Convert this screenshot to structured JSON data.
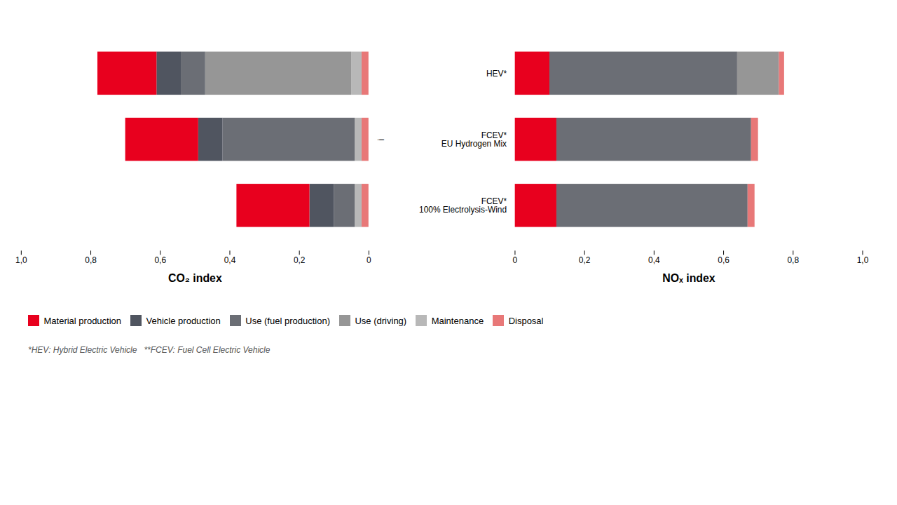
{
  "chart_data": [
    {
      "type": "bar",
      "orientation": "horizontal",
      "stacked": true,
      "tick_labels": "x",
      "xlabel": "CO₂ index",
      "categories": [
        "HEV*",
        "FCEV*\nEU Hydrogen Mix",
        "FCEV*\n100% Electrolysis-Wind"
      ],
      "series": [
        {
          "name": "Disposal",
          "color": "#e87878",
          "values": [
            0.02,
            0.02,
            0.02
          ]
        },
        {
          "name": "Maintenance",
          "color": "#b8b8b8",
          "values": [
            0.03,
            0.02,
            0.02
          ]
        },
        {
          "name": "Use (driving)",
          "color": "#969696",
          "values": [
            0.42,
            0.0,
            0.0
          ]
        },
        {
          "name": "Use (fuel production)",
          "color": "#6b6e75",
          "values": [
            0.07,
            0.38,
            0.06
          ]
        },
        {
          "name": "Vehicle production",
          "color": "#505560",
          "values": [
            0.07,
            0.07,
            0.07
          ]
        },
        {
          "name": "Material production",
          "color": "#e8001e",
          "values": [
            0.17,
            0.21,
            0.21
          ]
        }
      ],
      "xlim": [
        1.0,
        0
      ],
      "xticks": [
        {
          "value": 1.0,
          "label": "1,0"
        },
        {
          "value": 0.8,
          "label": "0,8"
        },
        {
          "value": 0.6,
          "label": "0,6"
        },
        {
          "value": 0.4,
          "label": "0,4"
        },
        {
          "value": 0.2,
          "label": "0,2"
        },
        0
      ],
      "annotations": [
        "*HEV: Hybrid Electric Vehicle   **FCEV: Fuel Cell Electric Vehicle"
      ]
    },
    {
      "type": "bar",
      "orientation": "horizontal",
      "stacked": true,
      "legend": "bottom",
      "xlabel": "NOₓ index",
      "categories": [
        "HEV*",
        "FCEV*\nEU Hydrogen Mix",
        "FCEV*\n100% Electrolysis-Wind"
      ],
      "series": [
        {
          "name": "Material production",
          "color": "#e8001e",
          "values": [
            0.1,
            0.12,
            0.12
          ]
        },
        {
          "name": "Vehicle production",
          "color": "#505560",
          "values": [
            0.0,
            0.0,
            0.0
          ]
        },
        {
          "name": "Use (fuel production)",
          "color": "#6b6e75",
          "values": [
            0.54,
            0.56,
            0.55
          ]
        },
        {
          "name": "Use (driving)",
          "color": "#969696",
          "values": [
            0.12,
            0.0,
            0.0
          ]
        },
        {
          "name": "Maintenance",
          "color": "#b8b8b8",
          "values": [
            0.0,
            0.0,
            0.0
          ]
        },
        {
          "name": "Disposal",
          "color": "#e87878",
          "values": [
            0.015,
            0.02,
            0.02
          ]
        }
      ],
      "xlim": [
        0,
        1.0
      ],
      "xticks": [
        0,
        {
          "value": 0.2,
          "label": "0,2"
        },
        {
          "value": 0.4,
          "label": "0,4"
        },
        {
          "value": 0.6,
          "label": "0,6"
        },
        {
          "value": 0.8,
          "label": "0,8"
        },
        {
          "value": 1.0,
          "label": "1,0"
        }
      ]
    }
  ]
}
